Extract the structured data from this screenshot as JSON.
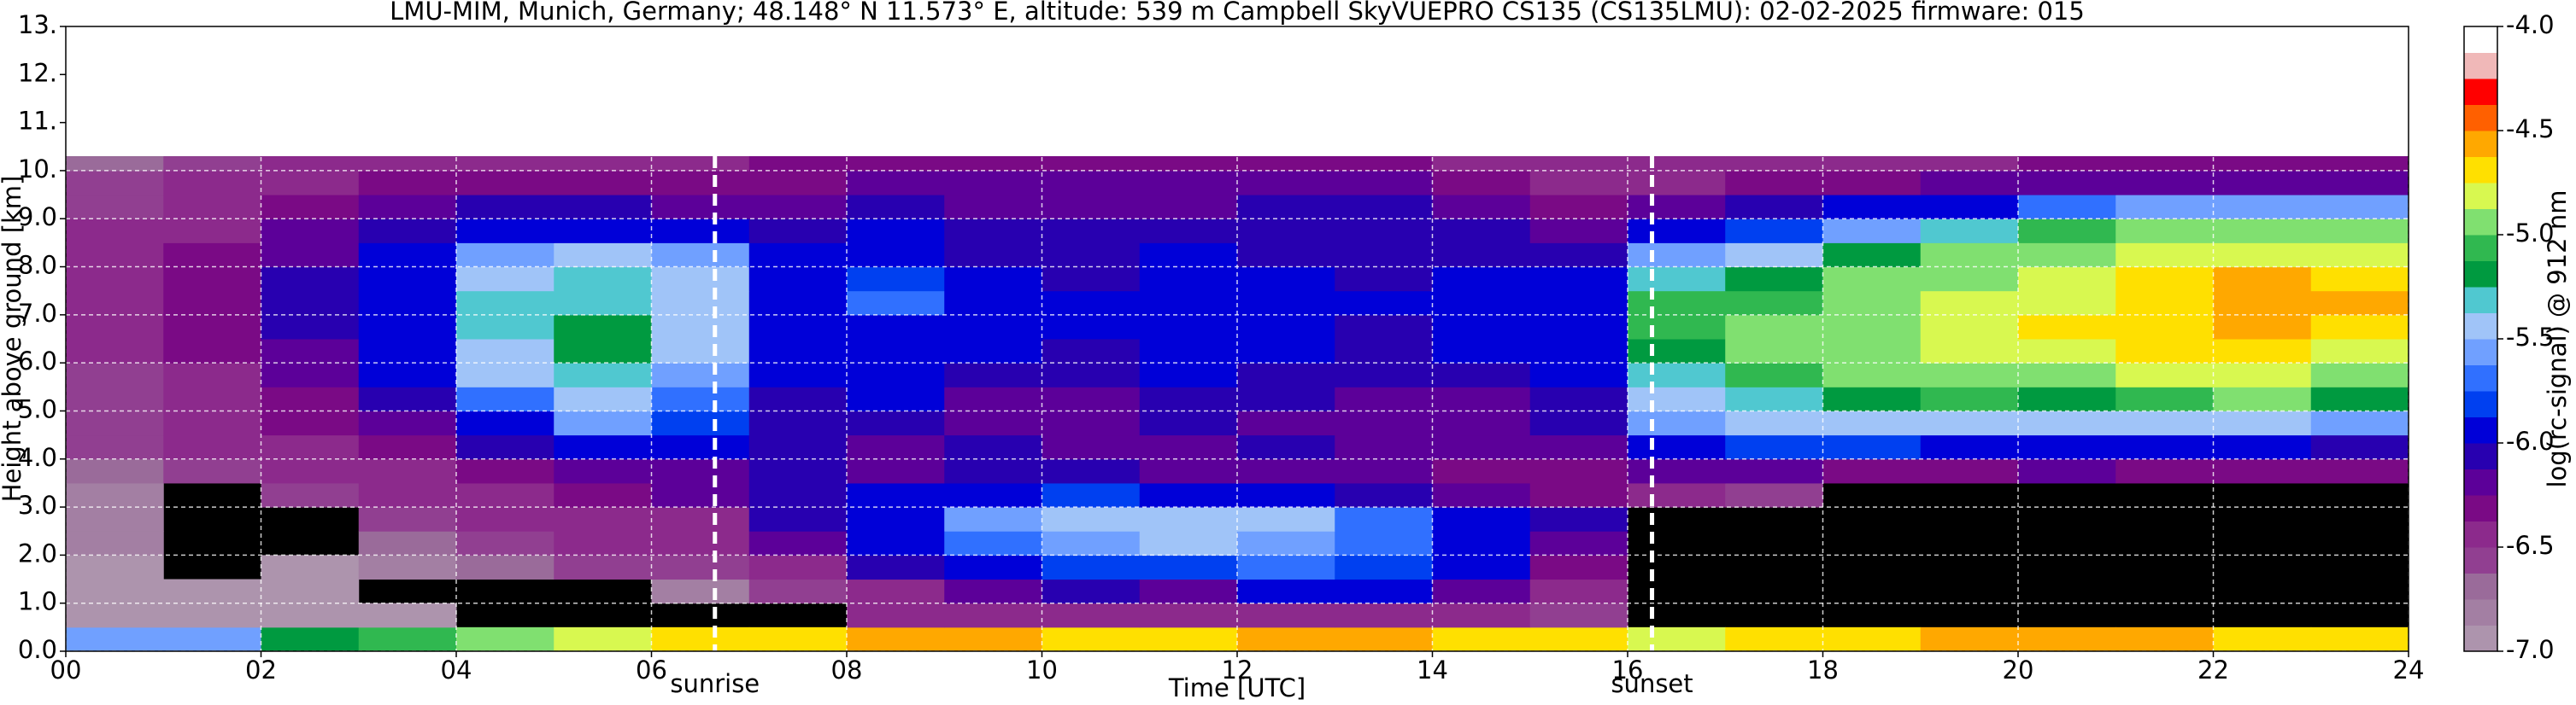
{
  "chart_data": {
    "type": "heatmap",
    "title": "LMU-MIM, Munich, Germany; 48.148° N 11.573° E, altitude: 539 m    Campbell SkyVUEPRO CS135 (CS135LMU): 02-02-2025    firmware: 015",
    "x_label": "Time [UTC]",
    "y_label": "Height above ground [km]",
    "colorbar_label": "log(rc-signal) @ 912 nm",
    "xlim": [
      0,
      24
    ],
    "ylim": [
      0,
      13
    ],
    "clim": [
      -7,
      -4
    ],
    "xticks": [
      {
        "value": 0,
        "label": "00"
      },
      {
        "value": 2,
        "label": "02"
      },
      {
        "value": 4,
        "label": "04"
      },
      {
        "value": 6,
        "label": "06"
      },
      {
        "value": 8,
        "label": "08"
      },
      10,
      12,
      14,
      16,
      18,
      20,
      22,
      24
    ],
    "yticks": [
      {
        "value": 0,
        "label": "0.0"
      },
      {
        "value": 1,
        "label": "1.0"
      },
      {
        "value": 2,
        "label": "2.0"
      },
      {
        "value": 3,
        "label": "3.0"
      },
      {
        "value": 4,
        "label": "4.0"
      },
      {
        "value": 5,
        "label": "5.0"
      },
      {
        "value": 6,
        "label": "6.0"
      },
      {
        "value": 7,
        "label": "7.0"
      },
      {
        "value": 8,
        "label": "8.0"
      },
      {
        "value": 9,
        "label": "9.0"
      },
      {
        "value": 10,
        "label": "10."
      },
      {
        "value": 11,
        "label": "11."
      },
      {
        "value": 12,
        "label": "12."
      },
      {
        "value": 13,
        "label": "13."
      }
    ],
    "cticks": [
      {
        "value": -4,
        "label": "-4.0"
      },
      {
        "value": -4.5,
        "label": "-4.5"
      },
      {
        "value": -5,
        "label": "-5.0"
      },
      {
        "value": -5.5,
        "label": "-5.5"
      },
      {
        "value": -6,
        "label": "-6.0"
      },
      {
        "value": -6.5,
        "label": "-6.5"
      },
      {
        "value": -7,
        "label": "-7.0"
      }
    ],
    "colors": [
      "#ad94ad",
      "#a37fa3",
      "#9a6b9a",
      "#913f91",
      "#8c2a8c",
      "#7a0a85",
      "#5c0099",
      "#2800b0",
      "#0000d8",
      "#0040f0",
      "#3070ff",
      "#70a0ff",
      "#a0c4f8",
      "#50c8d0",
      "#009a40",
      "#30b850",
      "#80e070",
      "#d8f850",
      "#ffe000",
      "#ffa800",
      "#ff6000",
      "#ff0000",
      "#f0b8b8",
      "#ffffff"
    ],
    "grid": true,
    "annotations": [
      {
        "text": "sunrise",
        "x": 6.65
      },
      {
        "text": "sunset",
        "x": 16.25
      }
    ],
    "x_bins": [
      0,
      1,
      2,
      3,
      4,
      5,
      6,
      7,
      8,
      9,
      10,
      11,
      12,
      13,
      14,
      15,
      16,
      17,
      18,
      19,
      20,
      21,
      22,
      23,
      24
    ],
    "y_bins": [
      0,
      0.5,
      1,
      1.5,
      2,
      2.5,
      3,
      3.5,
      4,
      4.5,
      5,
      5.5,
      6,
      6.5,
      7,
      7.5,
      8,
      8.5,
      9,
      9.5,
      10,
      10.3
    ],
    "values": [
      [
        -5.6,
        -5.6,
        -5.2,
        -5.1,
        -5.0,
        -4.8,
        -4.7,
        -4.7,
        -4.6,
        -4.6,
        -4.7,
        -4.7,
        -4.6,
        -4.6,
        -4.7,
        -4.7,
        -4.8,
        -4.7,
        -4.7,
        -4.6,
        -4.6,
        -4.6,
        -4.7,
        -4.7
      ],
      [
        -6.9,
        -6.9,
        -6.9,
        -6.9,
        null,
        null,
        null,
        null,
        -6.5,
        -6.5,
        -6.4,
        -6.5,
        -6.5,
        -6.4,
        -6.5,
        -6.6,
        null,
        null,
        null,
        null,
        null,
        null,
        null,
        null
      ],
      [
        -6.9,
        -6.9,
        -6.9,
        null,
        null,
        null,
        -6.8,
        -6.6,
        -6.4,
        -6.2,
        -6.1,
        -6.2,
        -6.0,
        -6.0,
        -6.2,
        -6.4,
        null,
        null,
        null,
        null,
        null,
        null,
        null,
        null
      ],
      [
        -6.9,
        null,
        -6.9,
        -6.8,
        -6.7,
        -6.6,
        -6.6,
        -6.4,
        -6.1,
        -5.9,
        -5.8,
        -5.8,
        -5.7,
        -5.8,
        -6.0,
        -6.3,
        null,
        null,
        null,
        null,
        null,
        null,
        null,
        null
      ],
      [
        -6.8,
        null,
        null,
        -6.7,
        -6.6,
        -6.5,
        -6.5,
        -6.2,
        -6.0,
        -5.7,
        -5.6,
        -5.5,
        -5.6,
        -5.7,
        -5.9,
        -6.2,
        null,
        null,
        null,
        null,
        null,
        null,
        null,
        null
      ],
      [
        -6.8,
        null,
        null,
        -6.6,
        -6.5,
        -6.4,
        -6.4,
        -6.1,
        -5.9,
        -5.6,
        -5.5,
        -5.5,
        -5.5,
        -5.7,
        -5.9,
        -6.1,
        null,
        null,
        null,
        null,
        null,
        null,
        null,
        null
      ],
      [
        -6.8,
        null,
        -6.6,
        -6.5,
        -6.4,
        -6.3,
        -6.2,
        -6.1,
        -6.0,
        -5.9,
        -5.8,
        -5.9,
        -6.0,
        -6.1,
        -6.2,
        -6.3,
        -6.5,
        -6.6,
        null,
        null,
        null,
        null,
        null,
        null
      ],
      [
        -6.7,
        -6.6,
        -6.5,
        -6.4,
        -6.3,
        -6.2,
        -6.2,
        -6.1,
        -6.2,
        -6.1,
        -6.1,
        -6.2,
        -6.2,
        -6.2,
        -6.3,
        -6.3,
        -6.2,
        -6.2,
        -6.3,
        -6.3,
        -6.2,
        -6.3,
        -6.3,
        -6.3
      ],
      [
        -6.6,
        -6.5,
        -6.4,
        -6.3,
        -6.1,
        -6.0,
        -6.0,
        -6.1,
        -6.2,
        -6.1,
        -6.2,
        -6.2,
        -6.1,
        -6.2,
        -6.2,
        -6.2,
        -5.9,
        -5.8,
        -5.8,
        -5.9,
        -5.9,
        -6.0,
        -6.0,
        -6.1
      ],
      [
        -6.6,
        -6.5,
        -6.3,
        -6.2,
        -5.9,
        -5.6,
        -5.8,
        -6.1,
        -6.1,
        -6.2,
        -6.2,
        -6.1,
        -6.2,
        -6.2,
        -6.2,
        -6.1,
        -5.6,
        -5.5,
        -5.4,
        -5.4,
        -5.5,
        -5.5,
        -5.4,
        -5.6
      ],
      [
        -6.6,
        -6.4,
        -6.3,
        -6.1,
        -5.7,
        -5.4,
        -5.7,
        -6.1,
        -6.0,
        -6.2,
        -6.2,
        -6.1,
        -6.1,
        -6.2,
        -6.2,
        -6.1,
        -5.4,
        -5.3,
        -5.2,
        -5.1,
        -5.2,
        -5.1,
        -5.0,
        -5.2
      ],
      [
        -6.6,
        -6.4,
        -6.2,
        -6.0,
        -5.5,
        -5.3,
        -5.6,
        -6.0,
        -5.9,
        -6.1,
        -6.1,
        -6.0,
        -6.1,
        -6.1,
        -6.1,
        -6.0,
        -5.3,
        -5.1,
        -5.0,
        -4.9,
        -4.9,
        -4.8,
        -4.8,
        -4.9
      ],
      [
        -6.5,
        -6.3,
        -6.2,
        -6.0,
        -5.4,
        -5.2,
        -5.5,
        -6.0,
        -6.0,
        -6.0,
        -6.1,
        -6.0,
        -6.0,
        -6.1,
        -6.0,
        -6.0,
        -5.2,
        -5.0,
        -4.9,
        -4.8,
        -4.8,
        -4.7,
        -4.7,
        -4.8
      ],
      [
        -6.5,
        -6.3,
        -6.1,
        -5.9,
        -5.3,
        -5.2,
        -5.4,
        -5.9,
        -5.9,
        -6.0,
        -6.0,
        -5.9,
        -6.0,
        -6.1,
        -6.0,
        -6.0,
        -5.1,
        -5.0,
        -4.9,
        -4.8,
        -4.7,
        -4.7,
        -4.6,
        -4.7
      ],
      [
        -6.5,
        -6.3,
        -6.1,
        -5.9,
        -5.3,
        -5.3,
        -5.5,
        -5.9,
        -5.7,
        -5.9,
        -6.0,
        -5.9,
        -6.0,
        -6.0,
        -5.9,
        -6.0,
        -5.1,
        -5.1,
        -4.9,
        -4.8,
        -4.8,
        -4.7,
        -4.6,
        -4.6
      ],
      [
        -6.5,
        -6.3,
        -6.1,
        -6.0,
        -5.4,
        -5.3,
        -5.5,
        -6.0,
        -5.8,
        -6.0,
        -6.1,
        -6.0,
        -6.0,
        -6.1,
        -6.0,
        -6.0,
        -5.3,
        -5.2,
        -5.0,
        -4.9,
        -4.8,
        -4.7,
        -4.6,
        -4.7
      ],
      [
        -6.5,
        -6.3,
        -6.2,
        -6.0,
        -5.6,
        -5.5,
        -5.6,
        -6.0,
        -5.9,
        -6.1,
        -6.1,
        -6.0,
        -6.1,
        -6.1,
        -6.1,
        -6.1,
        -5.6,
        -5.4,
        -5.2,
        -5.0,
        -4.9,
        -4.8,
        -4.8,
        -4.8
      ],
      [
        -6.5,
        -6.4,
        -6.2,
        -6.1,
        -5.9,
        -5.9,
        -6.0,
        -6.1,
        -6.0,
        -6.1,
        -6.1,
        -6.1,
        -6.1,
        -6.1,
        -6.1,
        -6.2,
        -6.0,
        -5.8,
        -5.6,
        -5.3,
        -5.1,
        -5.0,
        -5.0,
        -5.0
      ],
      [
        -6.6,
        -6.4,
        -6.3,
        -6.2,
        -6.1,
        -6.1,
        -6.2,
        -6.2,
        -6.1,
        -6.2,
        -6.2,
        -6.2,
        -6.1,
        -6.1,
        -6.2,
        -6.3,
        -6.2,
        -6.1,
        -6.0,
        -5.9,
        -5.7,
        -5.6,
        -5.6,
        -5.6
      ],
      [
        -6.6,
        -6.5,
        -6.4,
        -6.3,
        -6.3,
        -6.3,
        -6.3,
        -6.3,
        -6.2,
        -6.2,
        -6.2,
        -6.2,
        -6.2,
        -6.2,
        -6.3,
        -6.4,
        -6.4,
        -6.3,
        -6.3,
        -6.2,
        -6.2,
        -6.2,
        -6.2,
        -6.2
      ],
      [
        -6.7,
        -6.6,
        -6.5,
        -6.4,
        -6.4,
        -6.4,
        -6.4,
        -6.3,
        -6.3,
        -6.3,
        -6.3,
        -6.3,
        -6.3,
        -6.3,
        -6.4,
        -6.4,
        -6.4,
        -6.4,
        -6.4,
        -6.4,
        -6.3,
        -6.3,
        -6.3,
        -6.3
      ]
    ]
  }
}
